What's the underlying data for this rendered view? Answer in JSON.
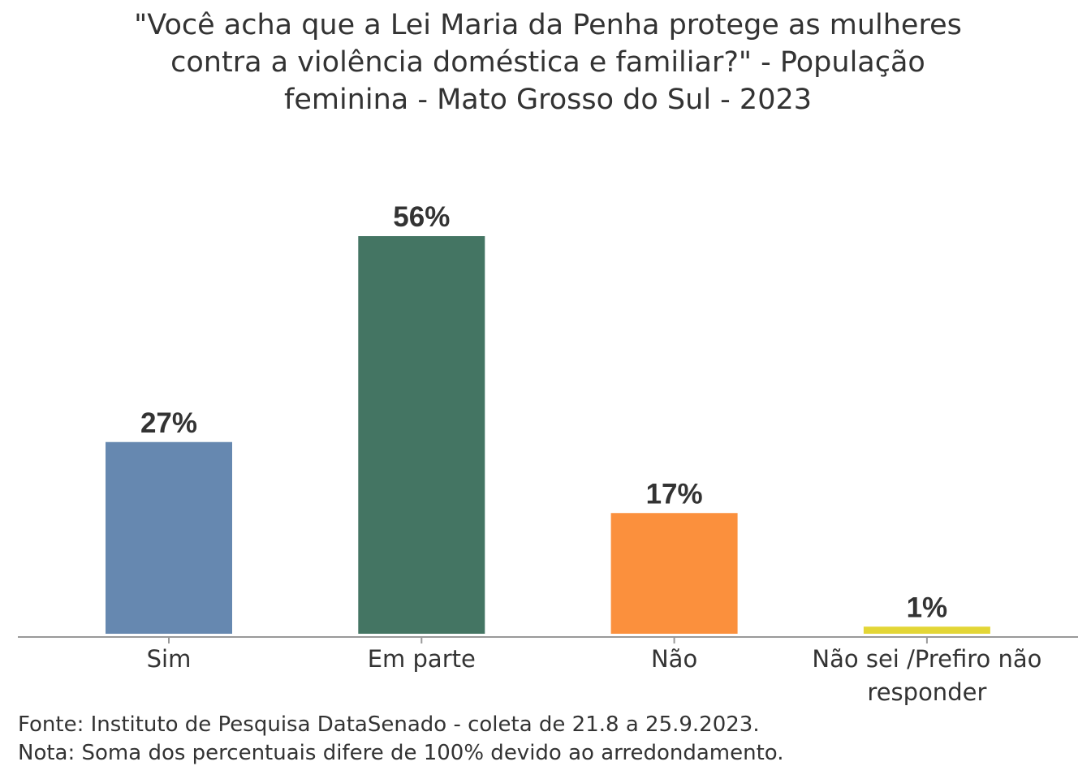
{
  "chart_data": {
    "type": "bar",
    "title_lines": [
      "\"Você acha que a Lei Maria da Penha protege as mulheres",
      "contra a violência doméstica e familiar?\" - População",
      "feminina - Mato Grosso do Sul - 2023"
    ],
    "categories": [
      [
        "Sim"
      ],
      [
        "Em parte"
      ],
      [
        "Não"
      ],
      [
        "Não sei /Prefiro não",
        "responder"
      ]
    ],
    "values": [
      27,
      56,
      17,
      1
    ],
    "labels": [
      "27%",
      "56%",
      "17%",
      "1%"
    ],
    "colors": [
      "#6688B0",
      "#447563",
      "#FB903D",
      "#E3D636"
    ],
    "xlabel": "",
    "ylabel": "",
    "ylim": [
      0,
      56
    ],
    "grid": false,
    "legend": "none"
  },
  "footer": {
    "source": "Fonte: Instituto de Pesquisa DataSenado - coleta de 21.8 a 25.9.2023.",
    "note": "Nota: Soma dos percentuais difere de 100% devido ao arredondamento."
  }
}
